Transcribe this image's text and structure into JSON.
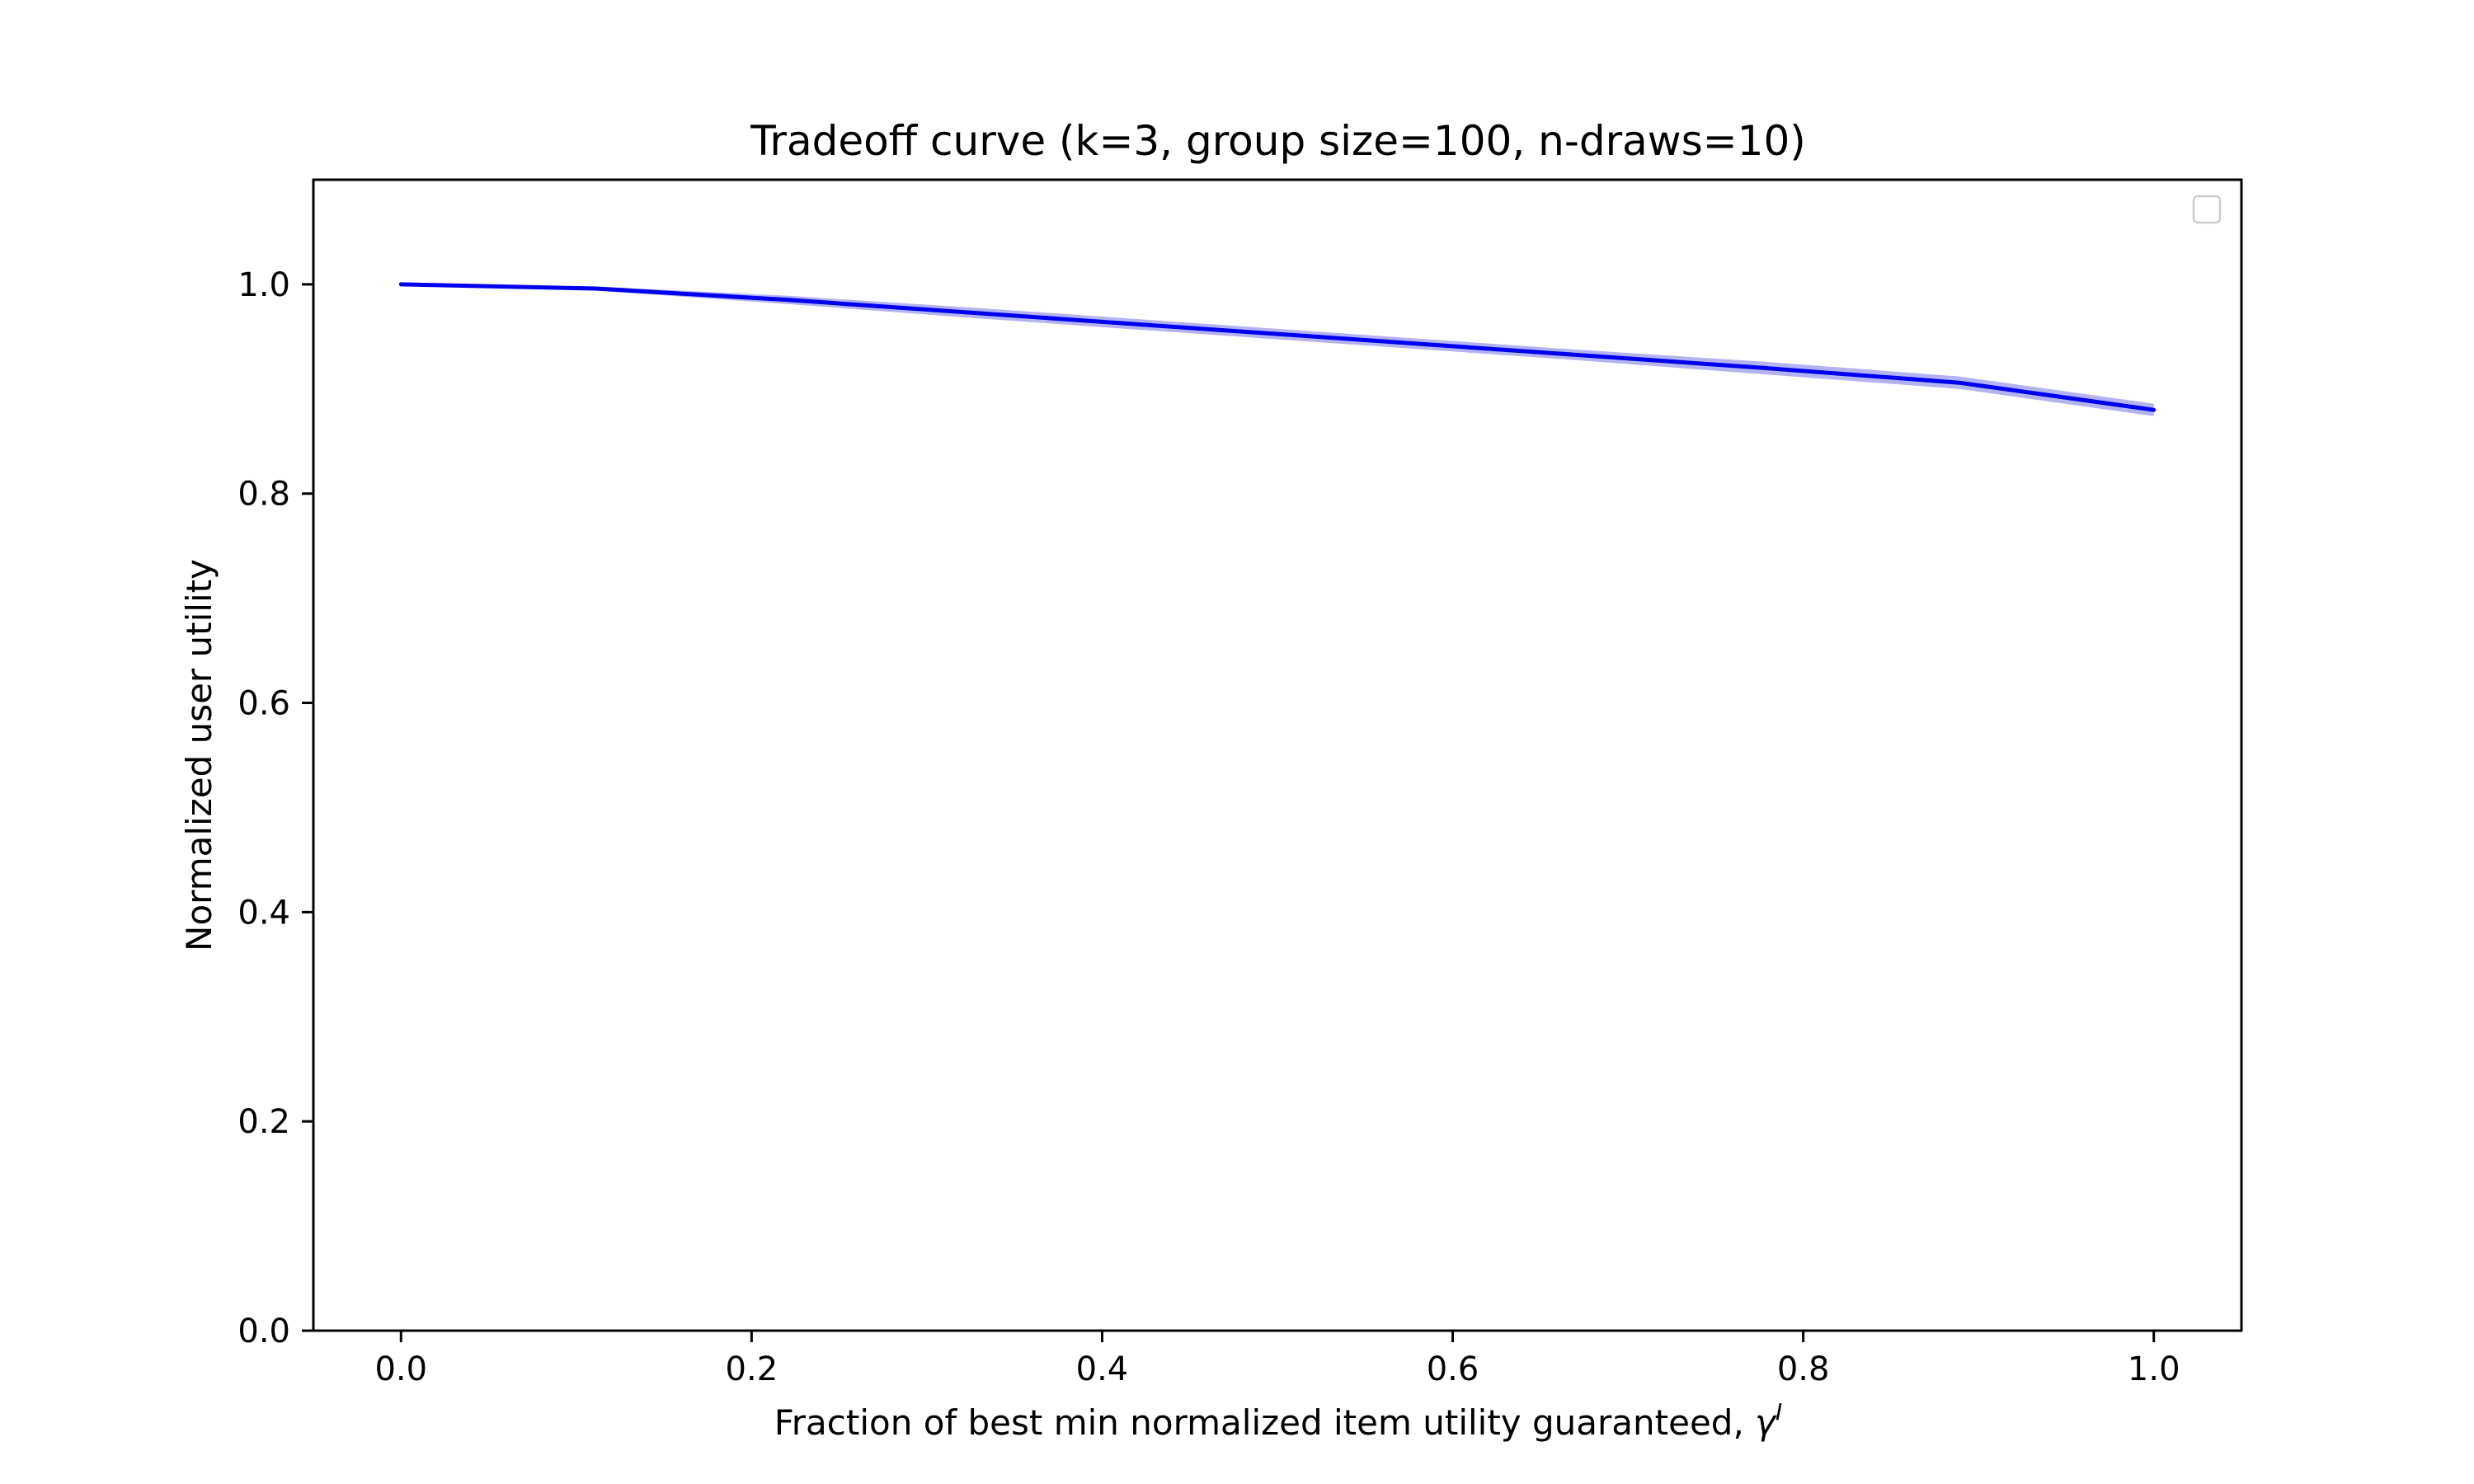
{
  "chart_data": {
    "type": "line",
    "title": "Tradeoff curve (k=3, group size=100, n-draws=10)",
    "xlabel": "Fraction of best min normalized item utility guaranteed, ",
    "xlabel_symbol": "γ",
    "xlabel_superscript": "I",
    "ylabel": "Normalized user utility",
    "xlim": [
      -0.05,
      1.05
    ],
    "ylim": [
      0.0,
      1.1
    ],
    "xticks": [
      0.0,
      0.2,
      0.4,
      0.6,
      0.8,
      1.0
    ],
    "xtick_labels": [
      "0.0",
      "0.2",
      "0.4",
      "0.6",
      "0.8",
      "1.0"
    ],
    "yticks": [
      0.0,
      0.2,
      0.4,
      0.6,
      0.8,
      1.0
    ],
    "ytick_labels": [
      "0.0",
      "0.2",
      "0.4",
      "0.6",
      "0.8",
      "1.0"
    ],
    "grid": false,
    "legend": {
      "placement": "upper-right",
      "entries": []
    },
    "series": [
      {
        "color": "#0000ee",
        "band_color": "#9999ee",
        "x": [
          0.0,
          0.111,
          0.222,
          0.333,
          0.444,
          0.556,
          0.667,
          0.778,
          0.889,
          1.0
        ],
        "y": [
          1.0,
          0.996,
          0.985,
          0.972,
          0.959,
          0.946,
          0.933,
          0.92,
          0.906,
          0.88
        ],
        "y_lower": [
          1.0,
          0.994,
          0.981,
          0.967,
          0.954,
          0.941,
          0.928,
          0.914,
          0.9,
          0.874
        ],
        "y_upper": [
          1.0,
          0.998,
          0.989,
          0.977,
          0.964,
          0.951,
          0.938,
          0.926,
          0.912,
          0.886
        ]
      }
    ]
  }
}
